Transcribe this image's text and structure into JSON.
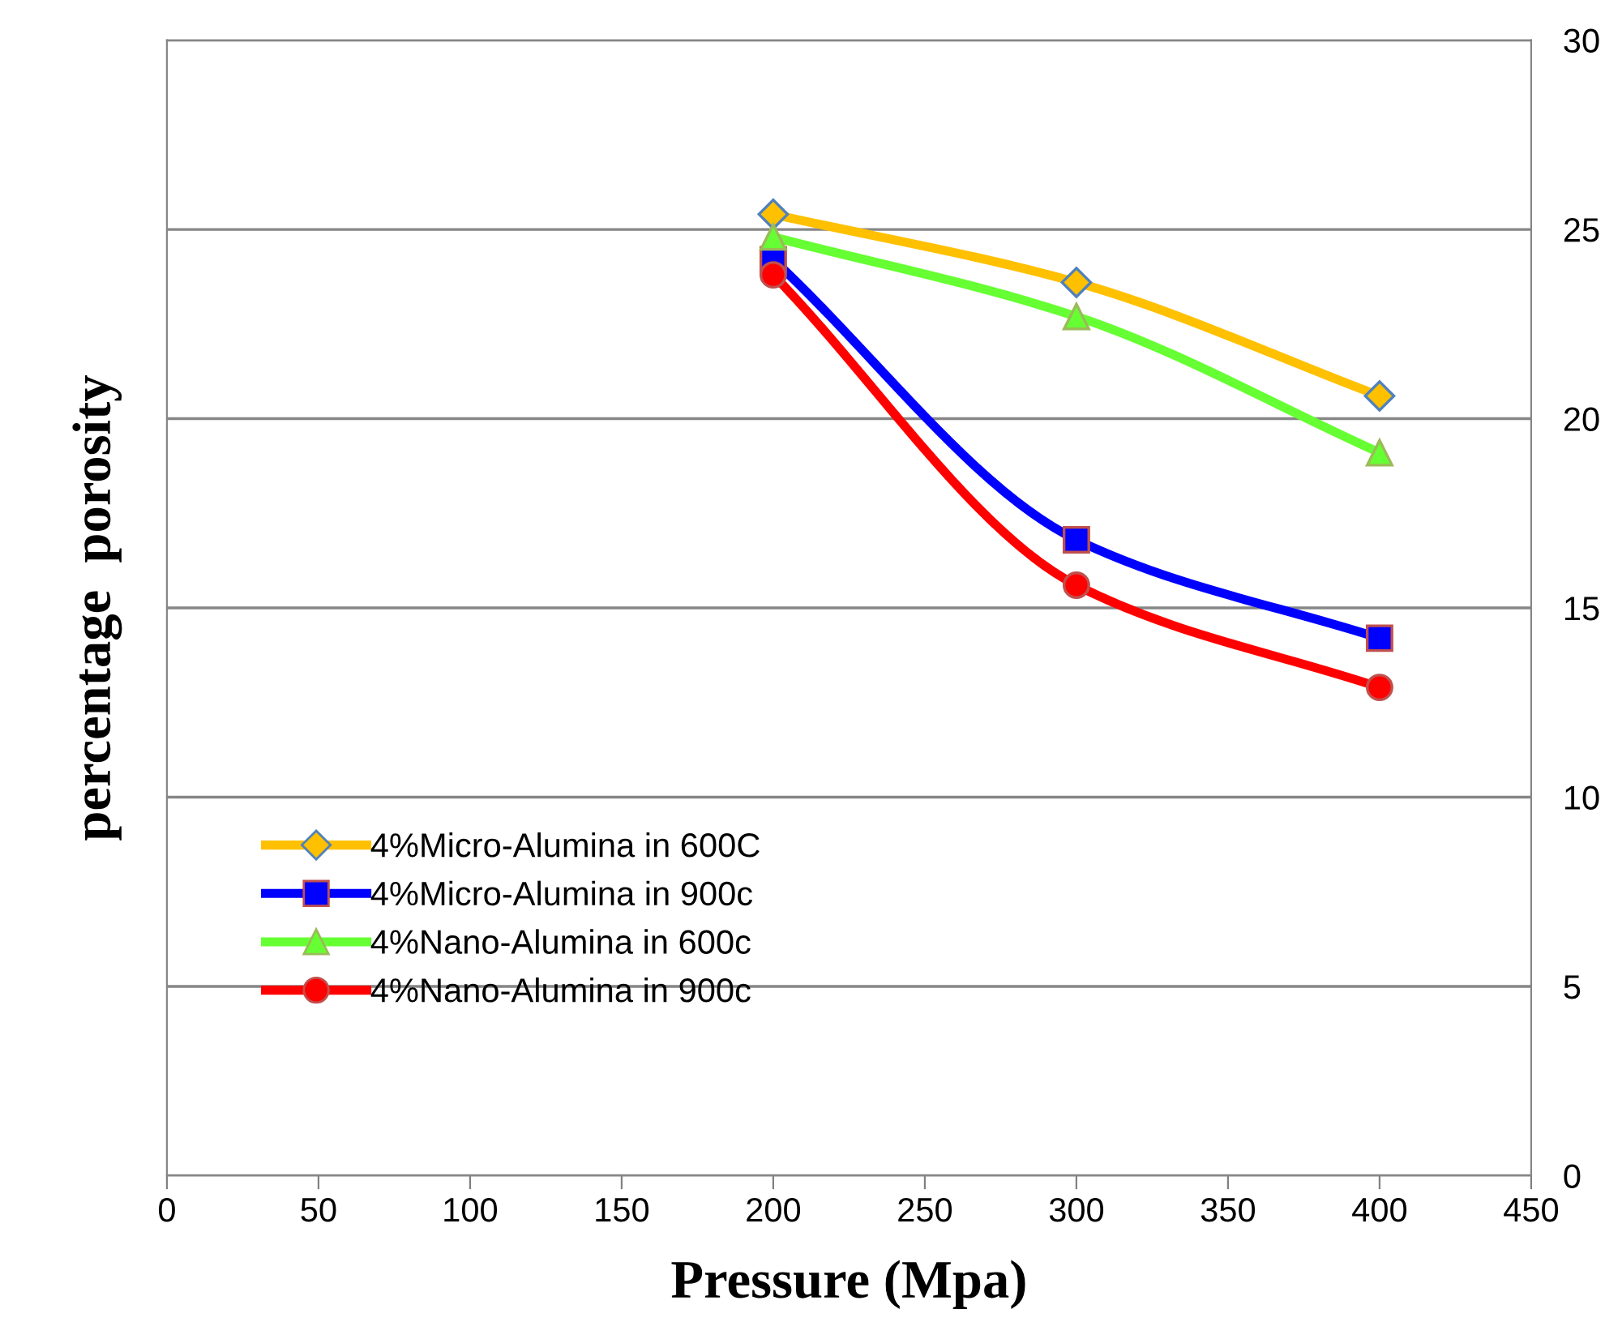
{
  "chart_data": {
    "type": "line",
    "xlabel": "Pressure (Mpa)",
    "ylabel": "percentage  porosity",
    "x": [
      200,
      300,
      400
    ],
    "series": [
      {
        "name": "4%Micro-Alumina in 600C",
        "color": "#ffc000",
        "marker": "diamond",
        "values": [
          25.4,
          23.6,
          20.6
        ]
      },
      {
        "name": "4%Micro-Alumina in 900c",
        "color": "#0000ff",
        "marker": "square",
        "values": [
          24.2,
          16.8,
          14.2
        ]
      },
      {
        "name": "4%Nano-Alumina in 600c",
        "color": "#66ff33",
        "marker": "triangle",
        "values": [
          24.8,
          22.7,
          19.1
        ]
      },
      {
        "name": "4%Nano-Alumina in 900c",
        "color": "#ff0000",
        "marker": "circle",
        "values": [
          23.8,
          15.6,
          12.9
        ]
      }
    ],
    "xlim": [
      0,
      450
    ],
    "xticks": [
      0,
      50,
      100,
      150,
      200,
      250,
      300,
      350,
      400,
      450
    ],
    "ylim": [
      0,
      30
    ],
    "yticks": [
      0,
      5,
      10,
      15,
      20,
      25,
      30
    ],
    "grid": "y",
    "legend": "bottom left",
    "line_style": "solid"
  }
}
